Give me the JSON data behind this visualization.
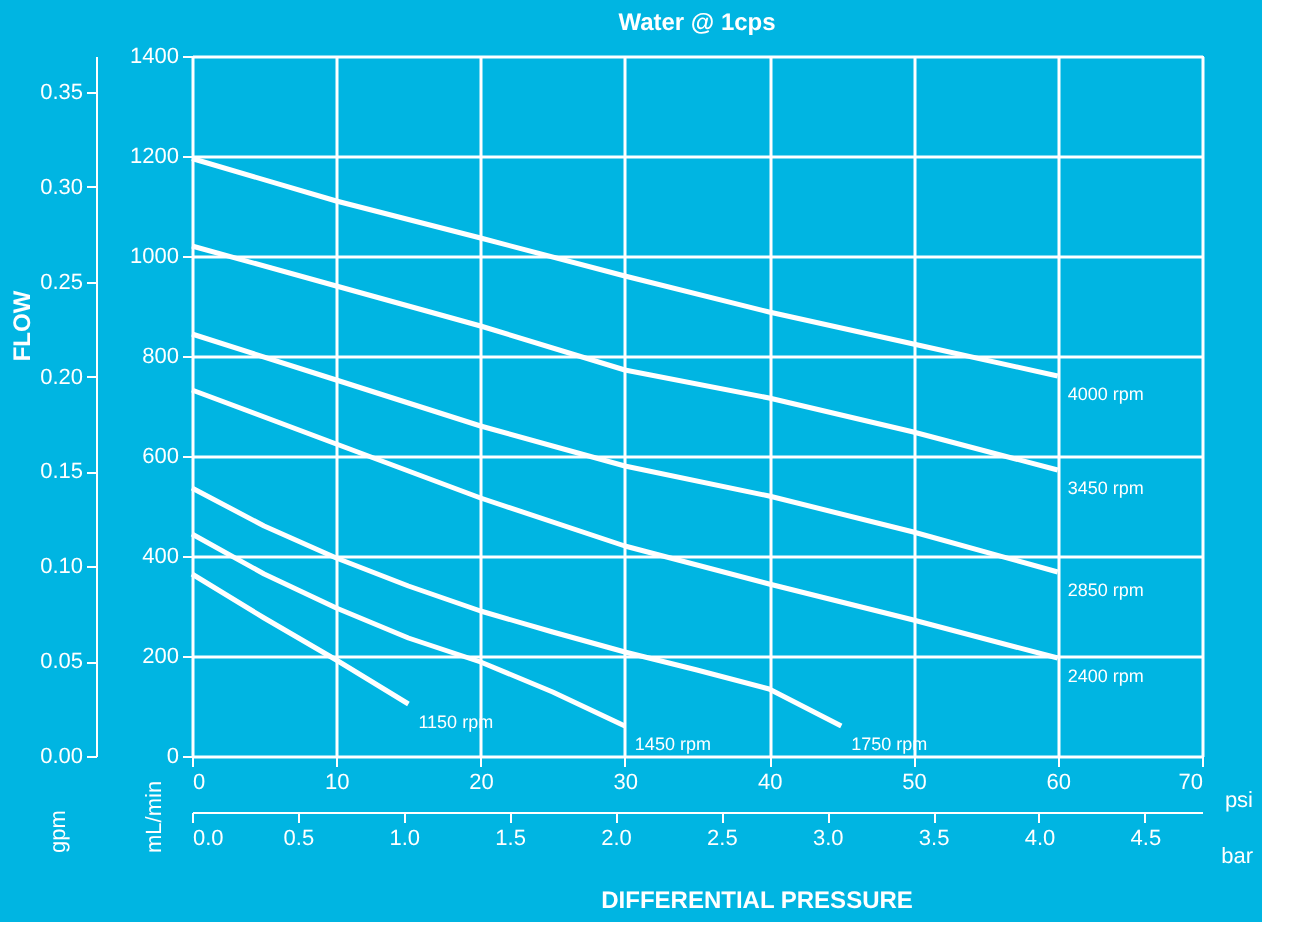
{
  "chart_data": {
    "type": "line",
    "title": "Water @ 1cps",
    "xlabel": "psi",
    "ylabel": "mL/min",
    "annotations": [
      "DIFFERENTIAL PRESSURE",
      "FLOW"
    ],
    "xlim": [
      0,
      70
    ],
    "xticks": [
      0,
      10,
      20,
      30,
      40,
      50,
      60,
      70
    ],
    "ylim": [
      0,
      1400
    ],
    "yticks": [
      0,
      200,
      400,
      600,
      800,
      1000,
      1200,
      1400
    ],
    "y2label": "gpm",
    "y2lim": [
      0,
      0.369
    ],
    "y2ticks": [
      {
        "value": 0,
        "label": "0.00"
      },
      {
        "value": 0.05,
        "label": "0.05"
      },
      {
        "value": 0.1,
        "label": "0.10"
      },
      {
        "value": 0.15,
        "label": "0.15"
      },
      {
        "value": 0.2,
        "label": "0.20"
      },
      {
        "value": 0.25,
        "label": "0.25"
      },
      {
        "value": 0.3,
        "label": "0.30"
      },
      {
        "value": 0.35,
        "label": "0.35"
      }
    ],
    "x2label": "bar",
    "x2lim": [
      0,
      4.77
    ],
    "x2ticks": [
      {
        "value": 0,
        "label": "0.0"
      },
      {
        "value": 0.5,
        "label": "0.5"
      },
      {
        "value": 1,
        "label": "1.0"
      },
      {
        "value": 1.5,
        "label": "1.5"
      },
      {
        "value": 2,
        "label": "2.0"
      },
      {
        "value": 2.5,
        "label": "2.5"
      },
      {
        "value": 3,
        "label": "3.0"
      },
      {
        "value": 3.5,
        "label": "3.5"
      },
      {
        "value": 4,
        "label": "4.0"
      },
      {
        "value": 4.5,
        "label": "4.5"
      }
    ],
    "grid": true,
    "legend": false,
    "marker": "none",
    "line_style": "solid",
    "series": [
      {
        "name": "4000 rpm",
        "color": "#ffffff",
        "x": [
          0,
          10,
          20,
          30,
          40,
          50,
          60
        ],
        "values": [
          1195,
          1110,
          1036,
          960,
          888,
          824,
          760
        ]
      },
      {
        "name": "3450 rpm",
        "color": "#ffffff",
        "x": [
          0,
          10,
          20,
          30,
          40,
          50,
          60
        ],
        "values": [
          1020,
          940,
          860,
          772,
          716,
          648,
          572
        ]
      },
      {
        "name": "2850 rpm",
        "color": "#ffffff",
        "x": [
          0,
          10,
          20,
          30,
          40,
          50,
          60
        ],
        "values": [
          844,
          752,
          660,
          580,
          520,
          448,
          368
        ]
      },
      {
        "name": "2400 rpm",
        "color": "#ffffff",
        "x": [
          0,
          10,
          20,
          30,
          40,
          50,
          60
        ],
        "values": [
          732,
          624,
          516,
          420,
          344,
          272,
          196
        ]
      },
      {
        "name": "1750 rpm",
        "color": "#ffffff",
        "x": [
          0,
          5,
          10,
          15,
          20,
          25,
          30,
          35,
          40,
          45
        ],
        "values": [
          536,
          460,
          396,
          340,
          290,
          248,
          208,
          172,
          134,
          60
        ]
      },
      {
        "name": "1450 rpm",
        "color": "#ffffff",
        "x": [
          0,
          5,
          10,
          15,
          20,
          25,
          30
        ],
        "values": [
          444,
          364,
          296,
          236,
          188,
          128,
          60
        ]
      },
      {
        "name": "1150 rpm",
        "color": "#ffffff",
        "x": [
          0,
          5,
          10,
          15
        ],
        "values": [
          364,
          276,
          192,
          104
        ]
      }
    ]
  }
}
